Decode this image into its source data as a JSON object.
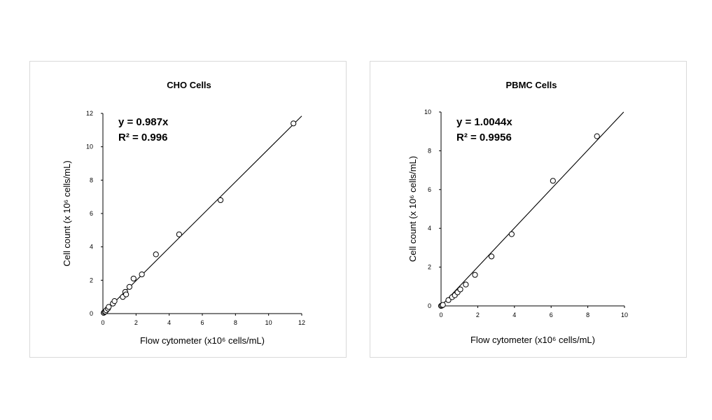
{
  "chart_data": [
    {
      "type": "scatter",
      "title": "CHO Cells",
      "xlabel": "Flow cytometer (x10⁶ cells/mL)",
      "ylabel": "Cell count (x 10⁶ cells/mL)",
      "xlim": [
        0,
        12
      ],
      "ylim": [
        0,
        12
      ],
      "xticks": [
        "0",
        "2",
        "4",
        "6",
        "8",
        "10",
        "12"
      ],
      "yticks": [
        "0",
        "2",
        "4",
        "6",
        "8",
        "10",
        "12"
      ],
      "equation": "y = 0.987x",
      "r_squared": "R² = 0.996",
      "trendline_slope": 0.987,
      "grid": false,
      "points": [
        {
          "x": 0.05,
          "y": 0.05
        },
        {
          "x": 0.1,
          "y": 0.1
        },
        {
          "x": 0.15,
          "y": 0.12
        },
        {
          "x": 0.2,
          "y": 0.2
        },
        {
          "x": 0.3,
          "y": 0.3
        },
        {
          "x": 0.35,
          "y": 0.4
        },
        {
          "x": 0.6,
          "y": 0.6
        },
        {
          "x": 0.7,
          "y": 0.75
        },
        {
          "x": 1.2,
          "y": 1.0
        },
        {
          "x": 1.35,
          "y": 1.3
        },
        {
          "x": 1.4,
          "y": 1.15
        },
        {
          "x": 1.6,
          "y": 1.6
        },
        {
          "x": 1.85,
          "y": 2.1
        },
        {
          "x": 2.35,
          "y": 2.35
        },
        {
          "x": 3.2,
          "y": 3.55
        },
        {
          "x": 4.6,
          "y": 4.75
        },
        {
          "x": 7.1,
          "y": 6.8
        },
        {
          "x": 11.5,
          "y": 11.4
        }
      ]
    },
    {
      "type": "scatter",
      "title": "PBMC Cells",
      "xlabel": "Flow cytometer (x10⁶ cells/mL)",
      "ylabel": "Cell count (x 10⁶ cells/mL)",
      "xlim": [
        0,
        10
      ],
      "ylim": [
        0,
        10
      ],
      "xticks": [
        "0",
        "2",
        "4",
        "6",
        "8",
        "10"
      ],
      "yticks": [
        "0",
        "2",
        "4",
        "6",
        "8",
        "10"
      ],
      "equation": "y = 1.0044x",
      "r_squared": "R² = 0.9956",
      "trendline_slope": 1.0044,
      "grid": false,
      "points": [
        {
          "x": 0.0,
          "y": 0.0
        },
        {
          "x": 0.05,
          "y": 0.02
        },
        {
          "x": 0.1,
          "y": 0.05
        },
        {
          "x": 0.4,
          "y": 0.3
        },
        {
          "x": 0.6,
          "y": 0.45
        },
        {
          "x": 0.75,
          "y": 0.55
        },
        {
          "x": 0.9,
          "y": 0.7
        },
        {
          "x": 1.05,
          "y": 0.85
        },
        {
          "x": 1.35,
          "y": 1.1
        },
        {
          "x": 1.85,
          "y": 1.6
        },
        {
          "x": 2.75,
          "y": 2.55
        },
        {
          "x": 3.85,
          "y": 3.7
        },
        {
          "x": 6.1,
          "y": 6.45
        },
        {
          "x": 8.5,
          "y": 8.75
        }
      ]
    }
  ]
}
